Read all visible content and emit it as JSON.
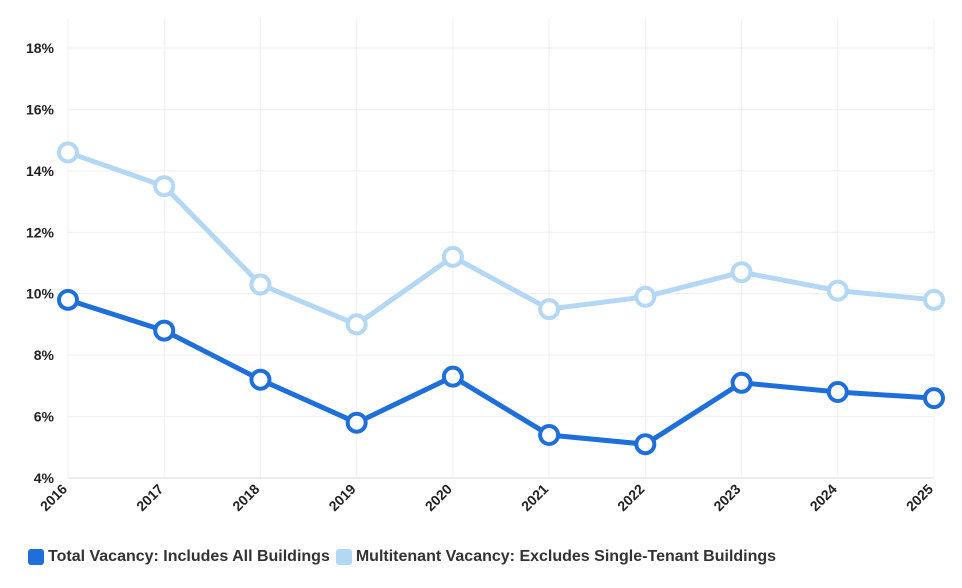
{
  "chart_data": {
    "type": "line",
    "title": "",
    "xlabel": "",
    "ylabel": "",
    "x": [
      "2016",
      "2017",
      "2018",
      "2019",
      "2020",
      "2021",
      "2022",
      "2023",
      "2024",
      "2025"
    ],
    "y_ticks": [
      "4%",
      "6%",
      "8%",
      "10%",
      "12%",
      "14%",
      "16%",
      "18%"
    ],
    "ylim": [
      4,
      18
    ],
    "grid": true,
    "legend_position": "bottom-left",
    "series": [
      {
        "name": "Total Vacancy: Includes All Buildings",
        "color": "#1f6fdb",
        "values": [
          9.8,
          8.8,
          7.2,
          5.8,
          7.3,
          5.4,
          5.1,
          7.1,
          6.8,
          6.6
        ]
      },
      {
        "name": "Multitenant Vacancy: Excludes Single-Tenant Buildings",
        "color": "#b3d7f5",
        "values": [
          14.6,
          13.5,
          10.3,
          9.0,
          11.2,
          9.5,
          9.9,
          10.7,
          10.1,
          9.8
        ]
      }
    ]
  }
}
